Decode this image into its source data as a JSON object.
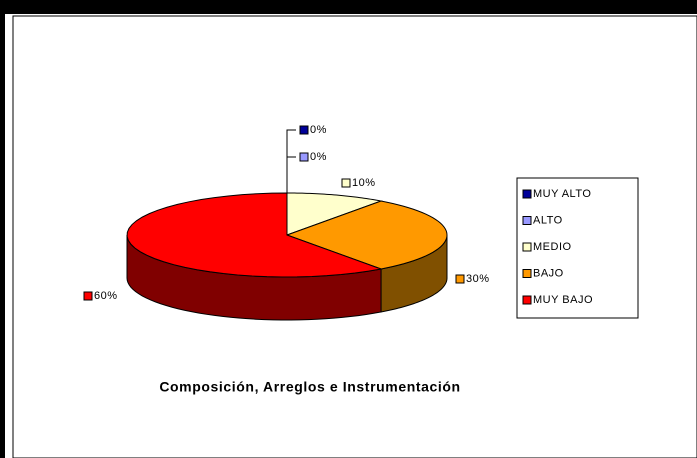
{
  "chart_data": {
    "type": "pie",
    "title": "Composición, Arreglos e Instrumentación",
    "categories": [
      "MUY ALTO",
      "ALTO",
      "MEDIO",
      "BAJO",
      "MUY BAJO"
    ],
    "values": [
      0,
      0,
      10,
      30,
      60
    ],
    "value_labels": [
      "0%",
      "0%",
      "10%",
      "30%",
      "60%"
    ],
    "colors": [
      "#000099",
      "#9999ff",
      "#ffffcc",
      "#ff9900",
      "#ff0000"
    ],
    "side_colors": [
      "#00004d",
      "#4d4d80",
      "#808066",
      "#805000",
      "#800000"
    ],
    "legend": "right"
  }
}
